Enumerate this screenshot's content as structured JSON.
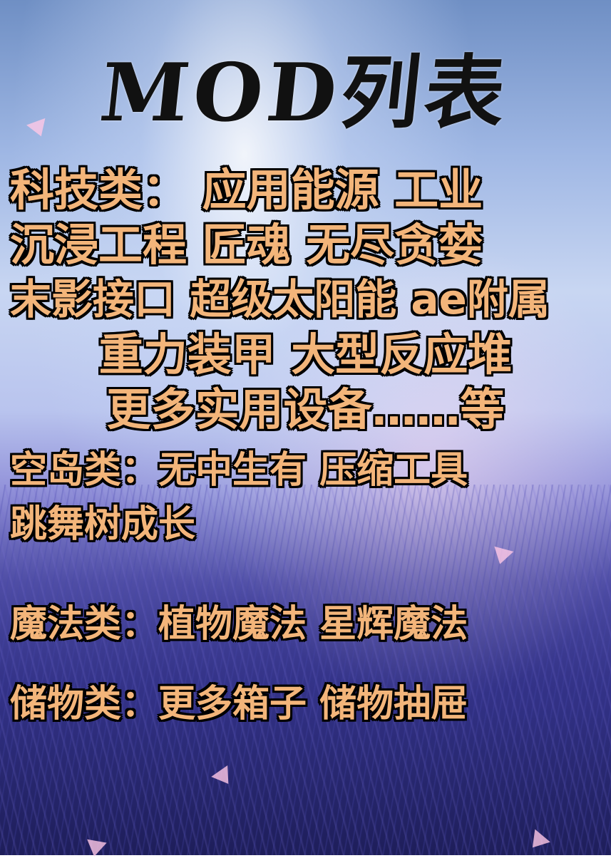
{
  "title": "MOD列表",
  "tech": {
    "line1": "科技类： 应用能源  工业",
    "line2": "沉浸工程  匠魂  无尽贪婪",
    "line3": "末影接口  超级太阳能  ae附属",
    "line4": "重力装甲   大型反应堆",
    "line5": "更多实用设备……等"
  },
  "skyblock": {
    "line1": "空岛类：无中生有  压缩工具",
    "line2": "跳舞树成长"
  },
  "magic": {
    "line1": "魔法类：植物魔法  星辉魔法"
  },
  "storage": {
    "line1": "储物类：更多箱子  储物抽屉"
  }
}
